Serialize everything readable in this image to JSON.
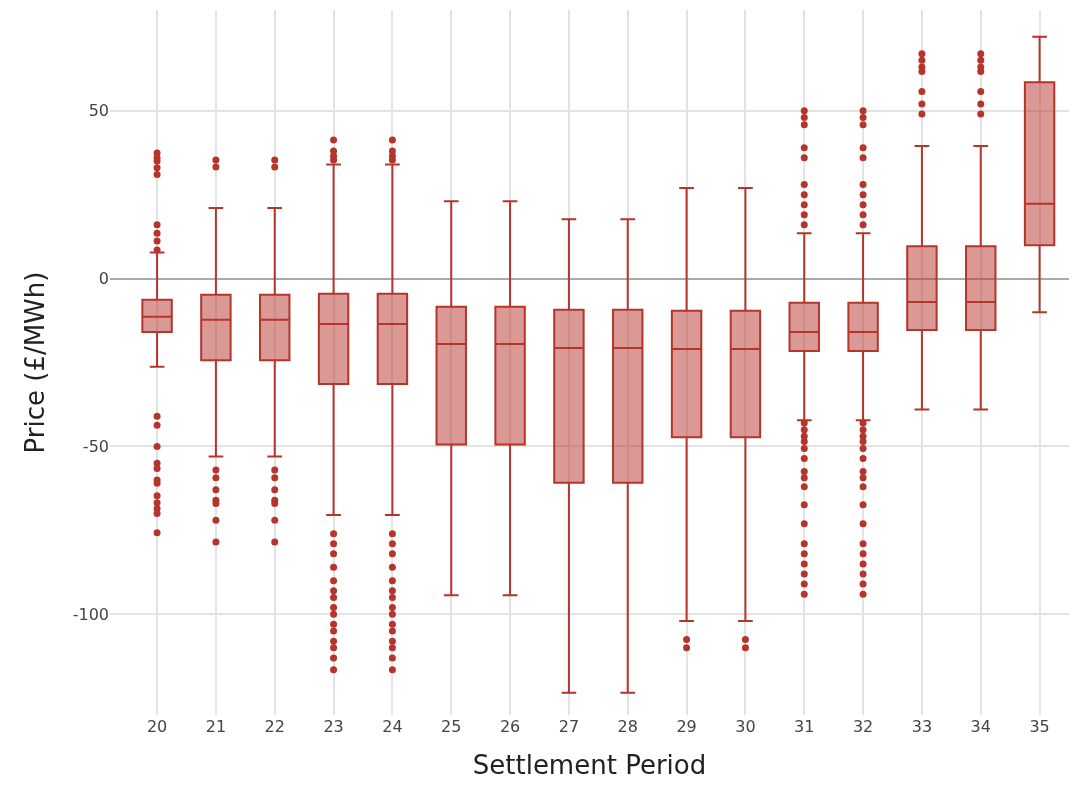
{
  "chart_data": {
    "type": "box",
    "xlabel": "Settlement Period",
    "ylabel": "Price (£/MWh)",
    "categories": [
      "20",
      "21",
      "22",
      "23",
      "24",
      "25",
      "26",
      "27",
      "28",
      "29",
      "30",
      "31",
      "32",
      "33",
      "34",
      "35"
    ],
    "color": "#b5342b",
    "ylim": [
      -130,
      80
    ],
    "yticks": [
      -100,
      -50,
      0,
      50
    ],
    "grid": true,
    "marker": "circle",
    "boxes": [
      {
        "low": -26.3,
        "q1": -15.9,
        "median": -11.4,
        "q3": -6.3,
        "high": 7.8,
        "outliers": [
          37.4,
          36,
          35,
          33,
          31,
          16,
          13.5,
          11.2,
          8.5,
          -41,
          -43.7,
          -50,
          -55,
          -56.6,
          -60,
          -61,
          -64.7,
          -66.8,
          -68.5,
          -70,
          -75.7
        ]
      },
      {
        "low": -53,
        "q1": -24.3,
        "median": -12.3,
        "q3": -4.8,
        "high": 21,
        "outliers": [
          35.3,
          33.2,
          -57,
          -59.3,
          -62.9,
          -66,
          -67,
          -72,
          -78.5
        ]
      },
      {
        "low": -53,
        "q1": -24.3,
        "median": -12.3,
        "q3": -4.8,
        "high": 21,
        "outliers": [
          35.3,
          33.2,
          -57,
          -59.3,
          -62.9,
          -66,
          -67,
          -72,
          -78.5
        ]
      },
      {
        "low": -70.4,
        "q1": -31.4,
        "median": -13.5,
        "q3": -4.5,
        "high": 34,
        "outliers": [
          41.3,
          38,
          36.5,
          35.3,
          -76,
          -79,
          -82,
          -86,
          -90,
          -93,
          -95,
          -98,
          -100,
          -103,
          -105,
          -108,
          -110,
          -113,
          -116.5
        ]
      },
      {
        "low": -70.4,
        "q1": -31.4,
        "median": -13.5,
        "q3": -4.5,
        "high": 34,
        "outliers": [
          41.3,
          38,
          36.5,
          35.3,
          -76,
          -79,
          -82,
          -86,
          -90,
          -93,
          -95,
          -98,
          -100,
          -103,
          -105,
          -108,
          -110,
          -113,
          -116.5
        ]
      },
      {
        "low": -94.3,
        "q1": -49.4,
        "median": -19.5,
        "q3": -8.4,
        "high": 23
      },
      {
        "low": -94.3,
        "q1": -49.4,
        "median": -19.5,
        "q3": -8.4,
        "high": 23
      },
      {
        "low": -123.4,
        "q1": -60.8,
        "median": -20.7,
        "q3": -9.3,
        "high": 17.7
      },
      {
        "low": -123.4,
        "q1": -60.8,
        "median": -20.7,
        "q3": -9.3,
        "high": 17.7
      },
      {
        "low": -102,
        "q1": -47.3,
        "median": -21,
        "q3": -9.6,
        "high": 27,
        "outliers": [
          -107.5,
          -110
        ]
      },
      {
        "low": -102,
        "q1": -47.3,
        "median": -21,
        "q3": -9.6,
        "high": 27,
        "outliers": [
          -107.5,
          -110
        ]
      },
      {
        "low": -42.2,
        "q1": -21.6,
        "median": -15.9,
        "q3": -7.2,
        "high": 13.5,
        "outliers": [
          50,
          48,
          45.8,
          39,
          36,
          28,
          25,
          22,
          19,
          16,
          -43,
          -45,
          -47,
          -48.5,
          -50.6,
          -53.6,
          -57.5,
          -59.3,
          -62,
          -67.4,
          -73,
          -79,
          -82,
          -85,
          -88,
          -91,
          -94
        ]
      },
      {
        "low": -42.2,
        "q1": -21.6,
        "median": -15.9,
        "q3": -7.2,
        "high": 13.5,
        "outliers": [
          50,
          48,
          45.8,
          39,
          36,
          28,
          25,
          22,
          19,
          16,
          -43,
          -45,
          -47,
          -48.5,
          -50.6,
          -53.6,
          -57.5,
          -59.3,
          -62,
          -67.4,
          -73,
          -79,
          -82,
          -85,
          -88,
          -91,
          -94
        ]
      },
      {
        "low": -39,
        "q1": -15.3,
        "median": -7,
        "q3": 9.6,
        "high": 39.5,
        "outliers": [
          67,
          65,
          63,
          61.7,
          55.7,
          52,
          49
        ]
      },
      {
        "low": -39,
        "q1": -15.3,
        "median": -7,
        "q3": 9.6,
        "high": 39.5,
        "outliers": [
          67,
          65,
          63,
          61.7,
          55.7,
          52,
          49
        ]
      },
      {
        "low": -10,
        "q1": 9.9,
        "median": 22.3,
        "q3": 58.5,
        "high": 72
      }
    ]
  }
}
